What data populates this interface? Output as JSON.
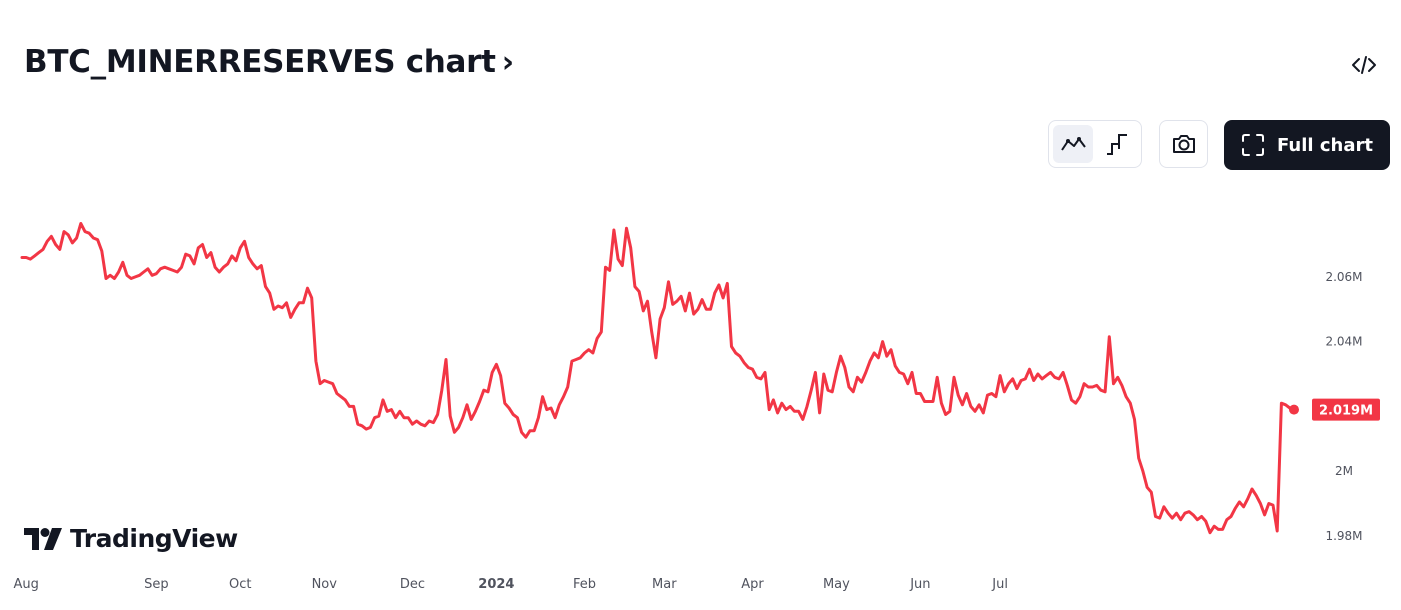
{
  "header": {
    "title": "BTC_MINERRESERVES chart",
    "full_chart_label": "Full chart"
  },
  "icons": {
    "title_chevron": "chevron-right-icon",
    "embed": "code-embed-icon",
    "line_style": "line-chart-icon",
    "step_style": "step-line-chart-icon",
    "snapshot": "camera-icon",
    "fullscreen": "fullscreen-icon"
  },
  "branding": {
    "logo_text": "TradingView"
  },
  "colors": {
    "series": "#f23645",
    "text": "#131722",
    "axis_text": "#50535e"
  },
  "chart_data": {
    "type": "line",
    "x_tick_labels": [
      "Aug",
      "Sep",
      "Oct",
      "Nov",
      "Dec",
      "2024",
      "Feb",
      "Mar",
      "Apr",
      "May",
      "Jun",
      "Jul"
    ],
    "y_tick_labels": [
      "2.06M",
      "2.04M",
      "2.02M",
      "2M",
      "1.98M"
    ],
    "y_ticks": [
      2.06,
      2.04,
      2.02,
      2.0,
      1.98
    ],
    "ylim": [
      1.9775,
      2.0785
    ],
    "last_value_label": "2.019M",
    "grid": false,
    "legend": "none",
    "series": [
      {
        "values": [
          2.066,
          2.066,
          2.0655,
          2.0665,
          2.0675,
          2.0685,
          2.071,
          2.0725,
          2.07,
          2.0685,
          2.074,
          2.073,
          2.0705,
          2.072,
          2.0765,
          2.074,
          2.0735,
          2.072,
          2.0715,
          2.068,
          2.0595,
          2.0605,
          2.0595,
          2.0615,
          2.0645,
          2.0605,
          2.0595,
          2.06,
          2.0605,
          2.0615,
          2.0625,
          2.0605,
          2.061,
          2.0625,
          2.063,
          2.0625,
          2.062,
          2.0615,
          2.063,
          2.067,
          2.0665,
          2.064,
          2.069,
          2.07,
          2.066,
          2.0675,
          2.063,
          2.0615,
          2.063,
          2.064,
          2.0665,
          2.065,
          2.069,
          2.071,
          2.066,
          2.064,
          2.0625,
          2.0635,
          2.057,
          2.055,
          2.05,
          2.051,
          2.0505,
          2.052,
          2.0475,
          2.05,
          2.052,
          2.052,
          2.0565,
          2.0535,
          2.034,
          2.027,
          2.028,
          2.0275,
          2.027,
          2.024,
          2.023,
          2.022,
          2.02,
          2.02,
          2.0145,
          2.014,
          2.013,
          2.0135,
          2.0165,
          2.017,
          2.022,
          2.0185,
          2.019,
          2.0165,
          2.0185,
          2.0165,
          2.0165,
          2.0145,
          2.0155,
          2.0145,
          2.014,
          2.0155,
          2.015,
          2.0175,
          2.025,
          2.0345,
          2.017,
          2.012,
          2.0135,
          2.0165,
          2.0205,
          2.016,
          2.0185,
          2.0215,
          2.025,
          2.0245,
          2.0305,
          2.033,
          2.0295,
          2.021,
          2.0195,
          2.0175,
          2.0165,
          2.012,
          2.0105,
          2.0125,
          2.0125,
          2.0165,
          2.023,
          2.019,
          2.0195,
          2.0165,
          2.0205,
          2.023,
          2.026,
          2.034,
          2.0345,
          2.035,
          2.0365,
          2.0375,
          2.0365,
          2.041,
          2.043,
          2.063,
          2.062,
          2.0745,
          2.0655,
          2.0635,
          2.075,
          2.069,
          2.057,
          2.0555,
          2.0495,
          2.0525,
          2.043,
          2.035,
          2.047,
          2.0505,
          2.0585,
          2.0515,
          2.0525,
          2.054,
          2.0495,
          2.055,
          2.0485,
          2.05,
          2.053,
          2.05,
          2.05,
          2.055,
          2.0575,
          2.0535,
          2.058,
          2.0385,
          2.0365,
          2.0355,
          2.0335,
          2.032,
          2.0315,
          2.029,
          2.0285,
          2.0305,
          2.019,
          2.022,
          2.018,
          2.021,
          2.019,
          2.02,
          2.0185,
          2.0185,
          2.016,
          2.02,
          2.025,
          2.0305,
          2.018,
          2.03,
          2.025,
          2.0245,
          2.0305,
          2.0355,
          2.032,
          2.026,
          2.0245,
          2.029,
          2.0275,
          2.0305,
          2.034,
          2.0365,
          2.035,
          2.04,
          2.0355,
          2.0375,
          2.0325,
          2.0305,
          2.03,
          2.027,
          2.0305,
          2.024,
          2.024,
          2.0215,
          2.0215,
          2.0215,
          2.029,
          2.021,
          2.0175,
          2.0185,
          2.029,
          2.0235,
          2.0205,
          2.024,
          2.02,
          2.0185,
          2.0205,
          2.018,
          2.0235,
          2.024,
          2.023,
          2.0295,
          2.0245,
          2.027,
          2.0285,
          2.0255,
          2.028,
          2.0285,
          2.0315,
          2.028,
          2.03,
          2.0285,
          2.0295,
          2.0305,
          2.029,
          2.0285,
          2.0305,
          2.0265,
          2.022,
          2.021,
          2.023,
          2.027,
          2.026,
          2.026,
          2.0265,
          2.025,
          2.0245,
          2.0415,
          2.027,
          2.029,
          2.0265,
          2.023,
          2.021,
          2.016,
          2.004,
          2.0,
          1.995,
          1.9935,
          1.986,
          1.9855,
          1.989,
          1.987,
          1.9855,
          1.987,
          1.985,
          1.987,
          1.9875,
          1.9865,
          1.985,
          1.986,
          1.9845,
          1.981,
          1.983,
          1.982,
          1.982,
          1.985,
          1.986,
          1.9885,
          1.9905,
          1.989,
          1.9915,
          1.9945,
          1.9925,
          1.99,
          1.9865,
          1.99,
          1.9895,
          1.9815,
          2.021,
          2.0205,
          2.0195,
          2.019
        ]
      }
    ]
  }
}
